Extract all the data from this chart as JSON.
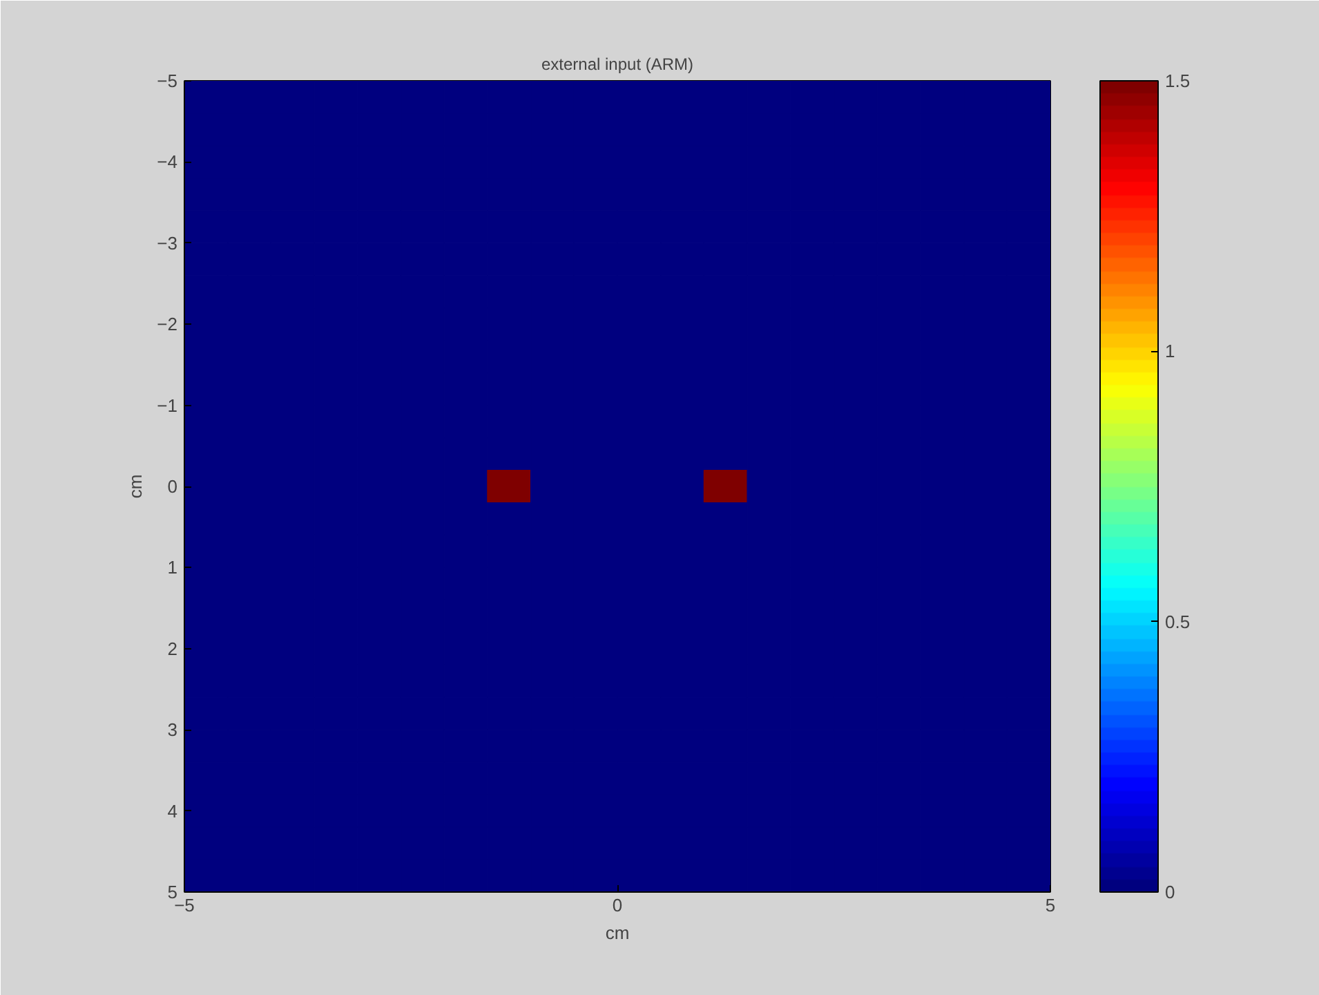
{
  "chart_data": {
    "type": "heatmap",
    "title": "external input (ARM)",
    "xlabel": "cm",
    "ylabel": "cm",
    "x": [
      -4.75,
      -4.25,
      -3.75,
      -3.25,
      -2.75,
      -2.25,
      -1.75,
      -1.25,
      -0.75,
      -0.25,
      0.25,
      0.75,
      1.25,
      1.75,
      2.25,
      2.75,
      3.25,
      3.75,
      4.25,
      4.75
    ],
    "y": [
      -4.8,
      -4.4,
      -4,
      -3.6,
      -3.2,
      -2.8,
      -2.4,
      -2,
      -1.6,
      -1.2,
      -0.8,
      -0.4,
      0,
      0.4,
      0.8,
      1.2,
      1.6,
      2,
      2.4,
      2.8,
      3.2,
      3.6,
      4,
      4.4,
      4.8
    ],
    "xlim": [
      -5,
      5
    ],
    "ylim": [
      5,
      -5
    ],
    "xticks": [
      -5,
      0,
      5
    ],
    "yticks": [
      -5,
      -4,
      -3,
      -2,
      -1,
      0,
      1,
      2,
      3,
      4,
      5
    ],
    "clim": [
      0,
      1.5
    ],
    "cticks": [
      0,
      0.5,
      1,
      1.5
    ],
    "cells": [
      [
        0,
        0,
        0,
        0,
        0,
        0,
        0,
        0,
        0,
        0,
        0,
        0,
        0,
        0,
        0,
        0,
        0,
        0,
        0,
        0
      ],
      [
        0,
        0,
        0,
        0,
        0,
        0,
        0,
        0,
        0,
        0,
        0,
        0,
        0,
        0,
        0,
        0,
        0,
        0,
        0,
        0
      ],
      [
        0,
        0,
        0,
        0,
        0,
        0,
        0,
        0,
        0,
        0,
        0,
        0,
        0,
        0,
        0,
        0,
        0,
        0,
        0,
        0
      ],
      [
        0,
        0,
        0,
        0,
        0,
        0,
        0,
        0,
        0,
        0,
        0,
        0,
        0,
        0,
        0,
        0,
        0,
        0,
        0,
        0
      ],
      [
        0,
        0,
        0,
        0,
        0,
        0,
        0,
        0,
        0,
        0,
        0,
        0,
        0,
        0,
        0,
        0,
        0,
        0,
        0,
        0
      ],
      [
        0,
        0,
        0,
        0,
        0,
        0,
        0,
        0,
        0,
        0,
        0,
        0,
        0,
        0,
        0,
        0,
        0,
        0,
        0,
        0
      ],
      [
        0,
        0,
        0,
        0,
        0,
        0,
        0,
        0,
        0,
        0,
        0,
        0,
        0,
        0,
        0,
        0,
        0,
        0,
        0,
        0
      ],
      [
        0,
        0,
        0,
        0,
        0,
        0,
        0,
        0,
        0,
        0,
        0,
        0,
        0,
        0,
        0,
        0,
        0,
        0,
        0,
        0
      ],
      [
        0,
        0,
        0,
        0,
        0,
        0,
        0,
        0,
        0,
        0,
        0,
        0,
        0,
        0,
        0,
        0,
        0,
        0,
        0,
        0
      ],
      [
        0,
        0,
        0,
        0,
        0,
        0,
        0,
        0,
        0,
        0,
        0,
        0,
        0,
        0,
        0,
        0,
        0,
        0,
        0,
        0
      ],
      [
        0,
        0,
        0,
        0,
        0,
        0,
        0,
        0,
        0,
        0,
        0,
        0,
        0,
        0,
        0,
        0,
        0,
        0,
        0,
        0
      ],
      [
        0,
        0,
        0,
        0,
        0,
        0,
        0,
        0,
        0,
        0,
        0,
        0,
        0,
        0,
        0,
        0,
        0,
        0,
        0,
        0
      ],
      [
        0,
        0,
        0,
        0,
        0,
        0,
        0,
        1.5,
        0,
        0,
        0,
        0,
        1.5,
        0,
        0,
        0,
        0,
        0,
        0,
        0
      ],
      [
        0,
        0,
        0,
        0,
        0,
        0,
        0,
        0,
        0,
        0,
        0,
        0,
        0,
        0,
        0,
        0,
        0,
        0,
        0,
        0
      ],
      [
        0,
        0,
        0,
        0,
        0,
        0,
        0,
        0,
        0,
        0,
        0,
        0,
        0,
        0,
        0,
        0,
        0,
        0,
        0,
        0
      ],
      [
        0,
        0,
        0,
        0,
        0,
        0,
        0,
        0,
        0,
        0,
        0,
        0,
        0,
        0,
        0,
        0,
        0,
        0,
        0,
        0
      ],
      [
        0,
        0,
        0,
        0,
        0,
        0,
        0,
        0,
        0,
        0,
        0,
        0,
        0,
        0,
        0,
        0,
        0,
        0,
        0,
        0
      ],
      [
        0,
        0,
        0,
        0,
        0,
        0,
        0,
        0,
        0,
        0,
        0,
        0,
        0,
        0,
        0,
        0,
        0,
        0,
        0,
        0
      ],
      [
        0,
        0,
        0,
        0,
        0,
        0,
        0,
        0,
        0,
        0,
        0,
        0,
        0,
        0,
        0,
        0,
        0,
        0,
        0,
        0
      ],
      [
        0,
        0,
        0,
        0,
        0,
        0,
        0,
        0,
        0,
        0,
        0,
        0,
        0,
        0,
        0,
        0,
        0,
        0,
        0,
        0
      ],
      [
        0,
        0,
        0,
        0,
        0,
        0,
        0,
        0,
        0,
        0,
        0,
        0,
        0,
        0,
        0,
        0,
        0,
        0,
        0,
        0
      ],
      [
        0,
        0,
        0,
        0,
        0,
        0,
        0,
        0,
        0,
        0,
        0,
        0,
        0,
        0,
        0,
        0,
        0,
        0,
        0,
        0
      ],
      [
        0,
        0,
        0,
        0,
        0,
        0,
        0,
        0,
        0,
        0,
        0,
        0,
        0,
        0,
        0,
        0,
        0,
        0,
        0,
        0
      ],
      [
        0,
        0,
        0,
        0,
        0,
        0,
        0,
        0,
        0,
        0,
        0,
        0,
        0,
        0,
        0,
        0,
        0,
        0,
        0,
        0
      ],
      [
        0,
        0,
        0,
        0,
        0,
        0,
        0,
        0,
        0,
        0,
        0,
        0,
        0,
        0,
        0,
        0,
        0,
        0,
        0,
        0
      ]
    ]
  }
}
